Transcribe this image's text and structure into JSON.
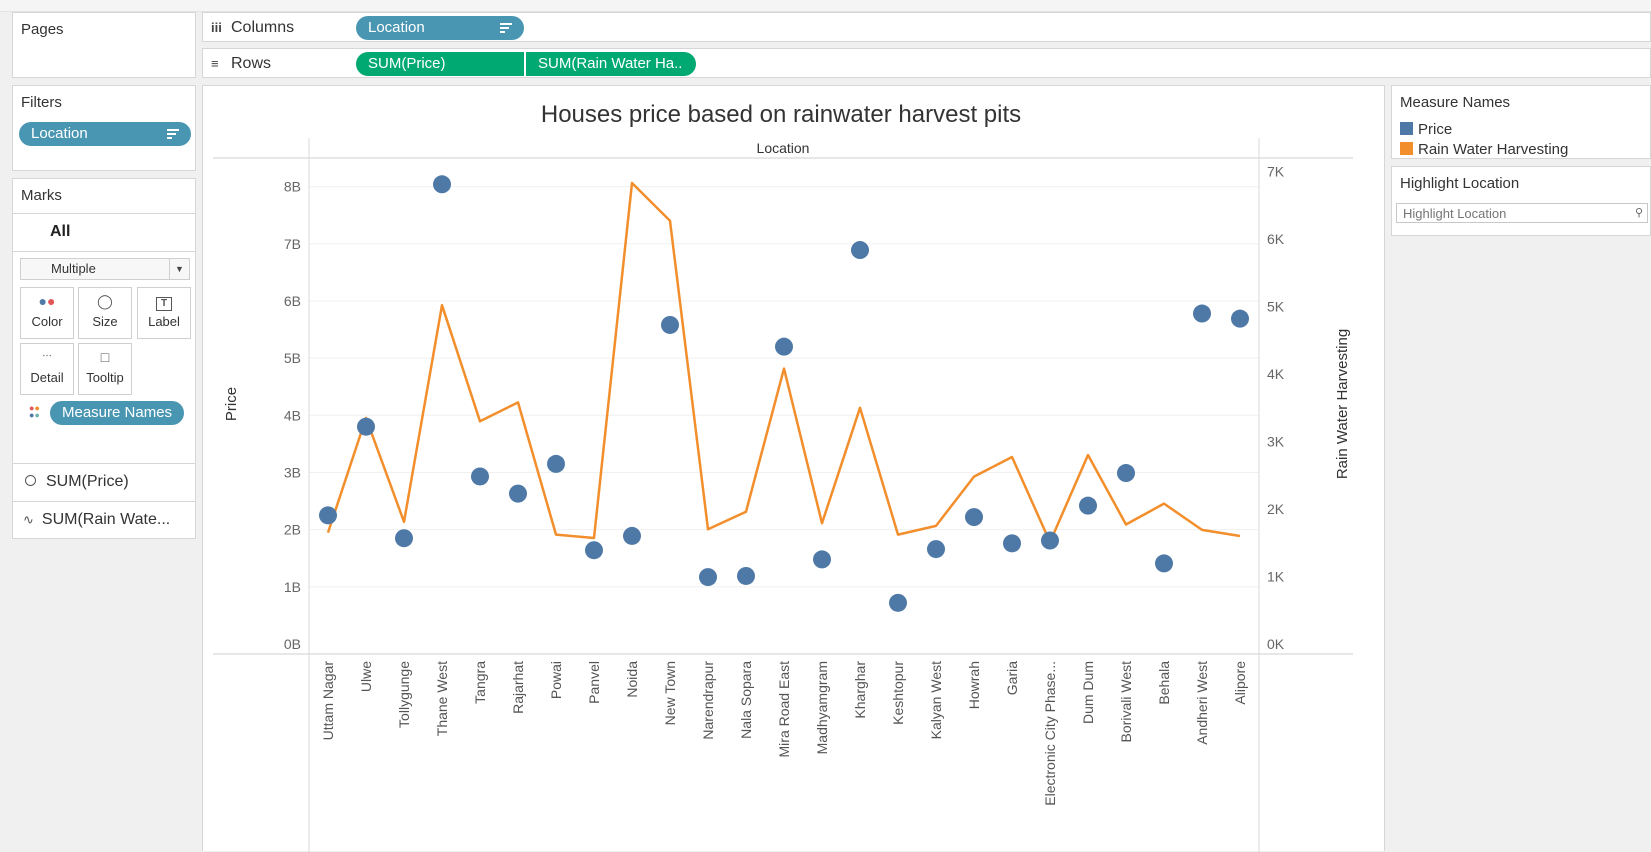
{
  "shelves": {
    "pages_title": "Pages",
    "columns_label": "Columns",
    "columns_pill": "Location",
    "rows_label": "Rows",
    "rows_pills": [
      "SUM(Price)",
      "SUM(Rain Water Ha.."
    ]
  },
  "filters": {
    "title": "Filters",
    "pill": "Location"
  },
  "marks": {
    "title": "Marks",
    "all_label": "All",
    "mark_type": "Multiple",
    "buttons": [
      "Color",
      "Size",
      "Label",
      "Detail",
      "Tooltip"
    ],
    "color_pill": "Measure Names",
    "measures": [
      "SUM(Price)",
      "SUM(Rain Wate..."
    ]
  },
  "legend": {
    "title": "Measure Names",
    "items": [
      {
        "label": "Price",
        "color": "#4e79a7"
      },
      {
        "label": "Rain Water Harvesting",
        "color": "#f28e2b"
      }
    ]
  },
  "highlight": {
    "title": "Highlight Location",
    "placeholder": "Highlight Location"
  },
  "chart_data": {
    "type": "line",
    "title": "Houses price based on rainwater harvest pits",
    "header_label": "Location",
    "ylabel_left": "Price",
    "ylabel_right": "Rain Water Harvesting",
    "left_ticks": [
      "0B",
      "1B",
      "2B",
      "3B",
      "4B",
      "5B",
      "6B",
      "7B",
      "8B"
    ],
    "right_ticks": [
      "0K",
      "1K",
      "2K",
      "3K",
      "4K",
      "5K",
      "6K",
      "7K"
    ],
    "left_ylim": [
      0,
      8500000000
    ],
    "right_ylim": [
      0,
      7200
    ],
    "categories": [
      "Uttam Nagar",
      "Ulwe",
      "Tollygunge",
      "Thane West",
      "Tangra",
      "Rajarhat",
      "Powai",
      "Panvel",
      "Noida",
      "New Town",
      "Narendrapur",
      "Nala Sopara",
      "Mira Road East",
      "Madhyamgram",
      "Kharghar",
      "Keshtopur",
      "Kalyan West",
      "Howrah",
      "Garia",
      "Electronic City Phase...",
      "Dum Dum",
      "Borivali West",
      "Behala",
      "Andheri West",
      "Alipore"
    ],
    "series": [
      {
        "name": "Price",
        "mark": "circle",
        "axis": "left",
        "color": "#4e79a7",
        "values": [
          2250000000,
          3800000000,
          1850000000,
          8040000000,
          2930000000,
          2630000000,
          3150000000,
          1640000000,
          1890000000,
          5580000000,
          1170000000,
          1190000000,
          5200000000,
          1480000000,
          6890000000,
          720000000,
          1660000000,
          2220000000,
          1760000000,
          1810000000,
          2420000000,
          2990000000,
          1410000000,
          5780000000,
          5690000000
        ]
      },
      {
        "name": "Rain Water Harvesting",
        "mark": "line",
        "axis": "right",
        "color": "#f28e2b",
        "values": [
          1650,
          3350,
          1810,
          5020,
          3300,
          3580,
          1620,
          1570,
          6830,
          6270,
          1700,
          1960,
          4080,
          1790,
          3500,
          1620,
          1750,
          2480,
          2770,
          1510,
          2800,
          1770,
          2080,
          1690,
          1600
        ]
      }
    ]
  }
}
